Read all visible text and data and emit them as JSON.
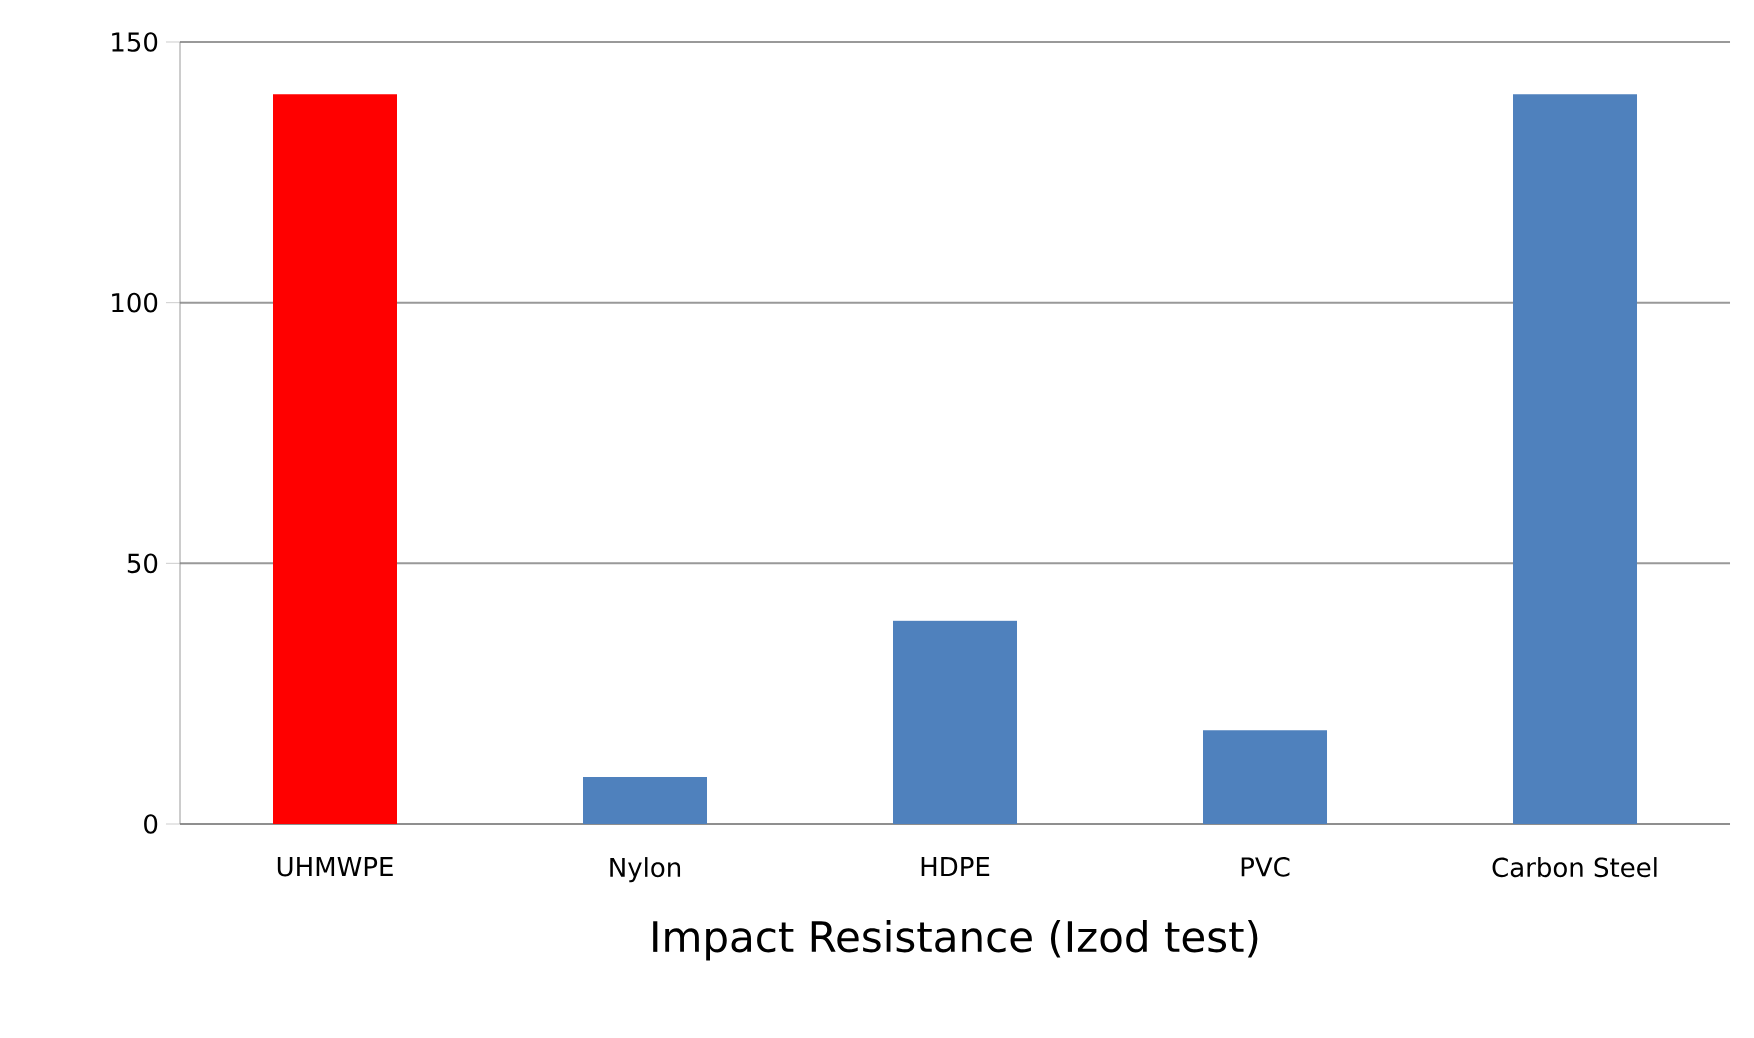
{
  "chart_data": {
    "type": "bar",
    "xlabel": "Impact Resistance (Izod test)",
    "categories": [
      "UHMWPE",
      "Nylon",
      "HDPE",
      "PVC",
      "Carbon Steel"
    ],
    "values": [
      140,
      9,
      39,
      18,
      140
    ],
    "colors": [
      "#ff0000",
      "#4f81bd",
      "#4f81bd",
      "#4f81bd",
      "#4f81bd"
    ],
    "ylim": [
      0,
      150
    ],
    "yticks": [
      0,
      50,
      100,
      150
    ],
    "grid": "y"
  }
}
